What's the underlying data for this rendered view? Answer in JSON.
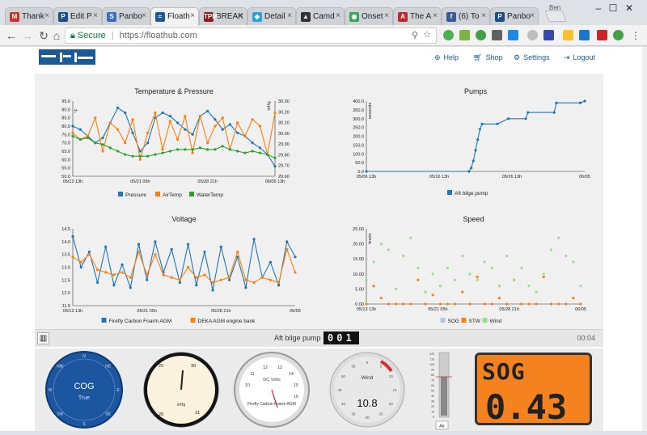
{
  "browser": {
    "tabs": [
      {
        "label": "Thank",
        "icon": "gmail-icon",
        "color": "#d93025",
        "glyph": "M"
      },
      {
        "label": "Edit P",
        "icon": "page-icon",
        "color": "#1a4f8b",
        "glyph": "P"
      },
      {
        "label": "Panbo",
        "icon": "page-icon",
        "color": "#3b6ec8",
        "glyph": "S"
      },
      {
        "label": "Floath",
        "icon": "floathub-icon",
        "color": "#1a5a96",
        "glyph": "≈"
      },
      {
        "label": "BREAK",
        "icon": "tpm-icon",
        "color": "#8b1a1a",
        "glyph": "TPM"
      },
      {
        "label": "Detail",
        "icon": "puzzle-icon",
        "color": "#29a3d8",
        "glyph": "◆"
      },
      {
        "label": "Camd",
        "icon": "camd-icon",
        "color": "#333333",
        "glyph": "▲"
      },
      {
        "label": "Onset",
        "icon": "maps-icon",
        "color": "#34a853",
        "glyph": "◉"
      },
      {
        "label": "The A",
        "icon": "atlantic-icon",
        "color": "#c62828",
        "glyph": "A"
      },
      {
        "label": "(6) To",
        "icon": "facebook-icon",
        "color": "#3b5998",
        "glyph": "f"
      },
      {
        "label": "Panbo",
        "icon": "page-icon",
        "color": "#1a4f8b",
        "glyph": "P"
      }
    ],
    "user": "Ben",
    "secure_label": "Secure",
    "url": "https://floathub.com"
  },
  "nav": {
    "help": "Help",
    "shop": "Shop",
    "settings": "Settings",
    "logout": "Logout"
  },
  "chart_data": [
    {
      "type": "line",
      "title": "Temperature & Pressure",
      "ylabel": "°F",
      "y2label": "inHg",
      "ylim": [
        50,
        95
      ],
      "yticks": [
        "95.0",
        "90.0",
        "85.0",
        "80.0",
        "75.0",
        "70.0",
        "65.0",
        "60.0",
        "55.0",
        "50.0"
      ],
      "y2lim": [
        29.6,
        30.3
      ],
      "y2ticks": [
        "30.30",
        "30.20",
        "30.10",
        "30.00",
        "29.90",
        "29.80",
        "29.70",
        "29.60"
      ],
      "xticks": [
        "05/13 13h",
        "05/21 05h",
        "05/28 21h",
        "06/05 13h"
      ],
      "series": [
        {
          "name": "Pressure",
          "color": "#1f77b4",
          "values": [
            80,
            78,
            74,
            70,
            73,
            82,
            91,
            88,
            76,
            65,
            70,
            85,
            88,
            86,
            82,
            78,
            75,
            86,
            89,
            84,
            78,
            81,
            76,
            74,
            70,
            67,
            63,
            56
          ]
        },
        {
          "name": "AirTemp",
          "color": "#ff7f0e",
          "values": [
            76,
            72,
            74,
            85,
            65,
            82,
            78,
            70,
            84,
            60,
            76,
            88,
            66,
            83,
            72,
            86,
            64,
            86,
            70,
            80,
            85,
            66,
            82,
            74,
            84,
            80,
            63,
            88
          ]
        },
        {
          "name": "WaterTemp",
          "color": "#2ca02c",
          "values": [
            74,
            72,
            73,
            70,
            69,
            67,
            65,
            63,
            62,
            62,
            62,
            63,
            64,
            65,
            66,
            66,
            66,
            67,
            66,
            66,
            68,
            66,
            65,
            64,
            65,
            64,
            63,
            61
          ]
        }
      ]
    },
    {
      "type": "line",
      "title": "Pumps",
      "ylabel": "seconds",
      "ylim": [
        0,
        400
      ],
      "yticks": [
        "400.0",
        "350.0",
        "300.0",
        "250.0",
        "200.0",
        "150.0",
        "100.0",
        "50.0",
        "0.0"
      ],
      "xticks": [
        "05/06 13h",
        "05/16 13h",
        "05/26 13h",
        "06/05"
      ],
      "series": [
        {
          "name": "Aft bilge pump",
          "color": "#1f77b4",
          "x": [
            0,
            0.47,
            0.48,
            0.49,
            0.5,
            0.51,
            0.52,
            0.53,
            0.6,
            0.65,
            0.73,
            0.74,
            0.86,
            0.87,
            0.98,
            1.0
          ],
          "values": [
            0,
            0,
            20,
            60,
            120,
            180,
            240,
            270,
            270,
            300,
            300,
            335,
            335,
            390,
            390,
            400
          ]
        }
      ]
    },
    {
      "type": "line",
      "title": "Voltage",
      "ylim": [
        11.5,
        14.5
      ],
      "yticks": [
        "14.5",
        "14.0",
        "13.5",
        "13.0",
        "12.5",
        "12.0",
        "11.5"
      ],
      "xticks": [
        "05/13 13h",
        "05/21 05h",
        "05/28 21h",
        "06/05"
      ],
      "series": [
        {
          "name": "Firefly Carbon Foarm AGM",
          "color": "#1f77b4",
          "values": [
            14.2,
            13.0,
            13.6,
            12.4,
            13.8,
            12.3,
            13.1,
            12.2,
            13.9,
            12.5,
            14.0,
            12.8,
            13.7,
            12.4,
            13.9,
            12.3,
            13.6,
            12.1,
            13.8,
            12.5,
            13.4,
            12.2,
            14.1,
            12.6,
            13.2,
            12.3,
            14.0,
            13.4
          ]
        },
        {
          "name": "DEKA AGM engine bank",
          "color": "#ff7f0e",
          "values": [
            13.4,
            13.2,
            13.5,
            12.9,
            12.8,
            12.7,
            12.8,
            12.6,
            13.6,
            12.7,
            13.5,
            12.7,
            12.6,
            12.5,
            13.0,
            12.6,
            12.7,
            12.4,
            12.5,
            12.6,
            13.6,
            12.5,
            12.4,
            12.6,
            12.5,
            12.4,
            13.7,
            12.8
          ]
        }
      ]
    },
    {
      "type": "scatter",
      "title": "Speed",
      "ylabel": "knots",
      "ylim": [
        0,
        25
      ],
      "yticks": [
        "25.00",
        "20.00",
        "15.00",
        "10.00",
        "5.00",
        "0.00"
      ],
      "xticks": [
        "05/13 13h",
        "05/21 05h",
        "05/28 21h",
        "06/05"
      ],
      "series": [
        {
          "name": "SOG",
          "color": "#aec7e8",
          "values": []
        },
        {
          "name": "STW",
          "color": "#ff7f0e",
          "values": [
            0,
            6,
            2,
            0,
            0,
            0,
            0,
            8,
            0,
            3,
            0,
            0,
            0,
            4,
            0,
            9,
            0,
            0,
            2,
            0,
            8,
            0,
            0,
            0,
            9,
            0,
            0,
            0,
            2,
            0
          ]
        },
        {
          "name": "Wind",
          "color": "#98df8a",
          "values": [
            8,
            14,
            20,
            18,
            5,
            16,
            22,
            12,
            4,
            10,
            6,
            12,
            8,
            16,
            10,
            8,
            14,
            12,
            6,
            16,
            8,
            12,
            6,
            4,
            10,
            18,
            22,
            16,
            14,
            6
          ]
        }
      ]
    }
  ],
  "statusbar": {
    "label": "Aft bilge pump",
    "counter": "001",
    "time": "00:04"
  },
  "gauges": {
    "cog": {
      "title": "COG",
      "subtitle": "True",
      "labels": [
        "N",
        "NE",
        "E",
        "SE",
        "S",
        "SW",
        "W",
        "NW"
      ]
    },
    "barometer": {
      "unit": "inHg",
      "ticks": [
        "29",
        "30",
        "28",
        "31"
      ]
    },
    "voltmeter": {
      "title": "DC Volts",
      "label": "Firefly Carbon Foarm AGM",
      "ticks": [
        "11",
        "12",
        "13",
        "14",
        "15",
        "10",
        "16"
      ]
    },
    "wind": {
      "title": "Wind",
      "value": "10.8",
      "ticks": [
        "0",
        "5",
        "10",
        "15",
        "20",
        "25",
        "30",
        "35",
        "40",
        "45",
        "50",
        "55"
      ]
    },
    "thermometer": {
      "label": "Air",
      "ticks": [
        "120",
        "110",
        "100",
        "90",
        "80",
        "70",
        "60",
        "50",
        "40",
        "30",
        "20",
        "10",
        "0"
      ]
    },
    "sog": {
      "label": "SOG",
      "value": "0.43"
    }
  }
}
